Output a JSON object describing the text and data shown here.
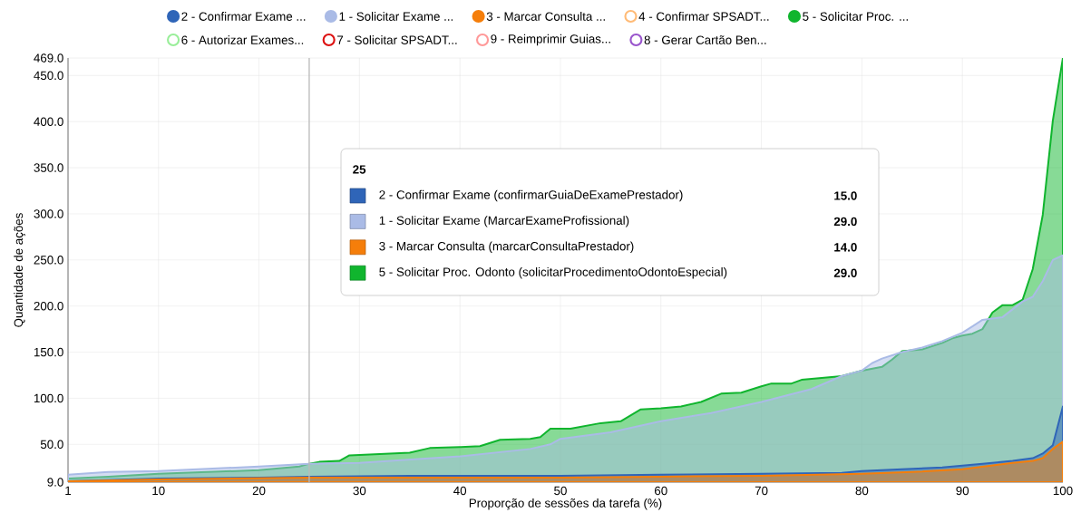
{
  "chart_data": {
    "type": "area",
    "xlabel": "Proporção de sessões da tarefa (%)",
    "ylabel": "Quantidade de ações",
    "xlim": [
      1,
      100
    ],
    "xticks": [
      1,
      10,
      20,
      30,
      40,
      50,
      60,
      70,
      80,
      90,
      100
    ],
    "ylim": [
      9,
      469
    ],
    "yticks": [
      {
        "value": 9,
        "label": "9.0"
      },
      {
        "value": 50,
        "label": "50.0"
      },
      {
        "value": 100,
        "label": "100.0"
      },
      {
        "value": 150,
        "label": "150.0"
      },
      {
        "value": 200,
        "label": "200.0"
      },
      {
        "value": 250,
        "label": "250.0"
      },
      {
        "value": 300,
        "label": "300.0"
      },
      {
        "value": 350,
        "label": "350.0"
      },
      {
        "value": 400,
        "label": "400.0"
      },
      {
        "value": 450,
        "label": "450.0"
      },
      {
        "value": 469,
        "label": "469.0"
      }
    ],
    "grid": true,
    "legend": "top",
    "series": [
      {
        "name": "2 - Confirmar Exame ...",
        "color": "#2f65b8",
        "x": [
          1,
          10,
          20,
          25,
          35,
          50,
          60,
          70,
          78,
          80,
          84,
          88,
          90,
          92,
          95,
          97,
          98,
          99,
          100
        ],
        "values": [
          10,
          13,
          14,
          15,
          16,
          16,
          17,
          18,
          19,
          21,
          23,
          25,
          27,
          29,
          32,
          35,
          40,
          49,
          91
        ]
      },
      {
        "name": "1 - Solicitar Exame ...",
        "color": "#aabbe6",
        "x": [
          1,
          5,
          10,
          20,
          25,
          30,
          40,
          47,
          49,
          50,
          55,
          60,
          65,
          70,
          75,
          78,
          80,
          81,
          82,
          84,
          86,
          88,
          90,
          91,
          92,
          94,
          96,
          97,
          98,
          99,
          100
        ],
        "values": [
          17,
          20,
          21,
          26,
          29,
          30,
          37,
          45,
          50,
          56,
          63,
          75,
          84,
          96,
          110,
          124,
          130,
          138,
          143,
          150,
          155,
          162,
          171,
          178,
          185,
          188,
          205,
          210,
          227,
          250,
          255
        ]
      },
      {
        "name": "3 - Marcar Consulta ...",
        "color": "#f57e0a",
        "x": [
          1,
          10,
          25,
          50,
          60,
          70,
          80,
          85,
          90,
          95,
          97,
          98,
          99,
          100
        ],
        "values": [
          10,
          12,
          14,
          14,
          15,
          16,
          18,
          20,
          23,
          30,
          32,
          35,
          45,
          53
        ]
      },
      {
        "name": "4 - Confirmar SPSADT...",
        "color": "#ffbb77"
      },
      {
        "name": "5 - Solicitar Proc. ...",
        "color": "#10b52e",
        "x": [
          1,
          5,
          10,
          15,
          20,
          24,
          25,
          26,
          28,
          29,
          33,
          35,
          37,
          40,
          42,
          44,
          47,
          48,
          49,
          51,
          54,
          56,
          58,
          60,
          62,
          64,
          66,
          68,
          70,
          71,
          73,
          74,
          76,
          78,
          80,
          82,
          83,
          84,
          86,
          88,
          89,
          90,
          91,
          92,
          93,
          94,
          95,
          96,
          97,
          98,
          99,
          100
        ],
        "values": [
          13,
          15,
          18,
          20,
          22,
          26,
          29,
          31,
          32,
          38,
          40,
          41,
          46,
          47,
          48,
          55,
          56,
          58,
          67,
          67,
          73,
          75,
          88,
          89,
          91,
          96,
          105,
          106,
          113,
          116,
          116,
          120,
          122,
          124,
          130,
          134,
          142,
          151,
          153,
          160,
          165,
          168,
          170,
          175,
          193,
          201,
          201,
          207,
          240,
          299,
          401,
          469
        ]
      },
      {
        "name": "6 - Autorizar Exames...",
        "color": "#99ee99"
      },
      {
        "name": "7 - Solicitar SPSADT...",
        "color": "#dd1111"
      },
      {
        "name": "9 - Reimprimir Guias...",
        "color": "#ff9999"
      },
      {
        "name": "8 - Gerar Cartão Ben...",
        "color": "#9955cc"
      }
    ],
    "ref_lines": [
      {
        "axis": "x",
        "value": 25,
        "color": "#bbbbbb"
      }
    ],
    "annotations": [
      "25",
      "2 - Confirmar Exame (confirmarGuiaDeExamePrestador)",
      "15.0",
      "1 - Solicitar Exame (MarcarExameProfissional)",
      "29.0",
      "3 - Marcar Consulta (marcarConsultaPrestador)",
      "14.0",
      "5 - Solicitar Proc. Odonto (solicitarProcedimentoOdontoEspecial)",
      "29.0"
    ]
  }
}
